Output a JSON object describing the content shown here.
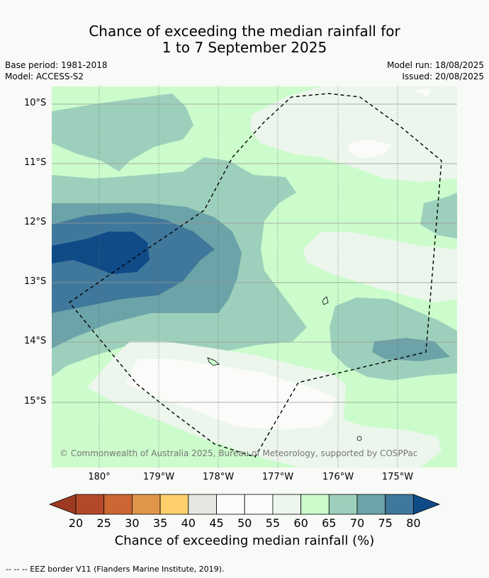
{
  "title_line1": "Chance of exceeding the median rainfall for",
  "title_line2": "1 to 7 September 2025",
  "base_period": "Base period: 1981-2018",
  "model": "Model: ACCESS-S2",
  "model_run": "Model run: 18/08/2025",
  "issued": "Issued: 20/08/2025",
  "lat_labels": [
    "10°S",
    "11°S",
    "12°S",
    "13°S",
    "14°S",
    "15°S"
  ],
  "lon_labels": [
    "180°",
    "179°W",
    "178°W",
    "177°W",
    "176°W",
    "175°W"
  ],
  "credit": "© Commonwealth of Australia 2025, Bureau of Meteorology, supported by COSPPac",
  "colorbar": {
    "ticks": [
      "20",
      "25",
      "30",
      "35",
      "40",
      "45",
      "50",
      "55",
      "60",
      "65",
      "70",
      "75",
      "80"
    ],
    "colors": [
      "#9f3a22",
      "#b4492a",
      "#cc6633",
      "#e0964a",
      "#fdcf6b",
      "#e8e6e2",
      "#fbfcfa",
      "#fbfcfa",
      "#ecf6ec",
      "#ccfccc",
      "#9dd0bc",
      "#6ba3a8",
      "#40789b",
      "#104b88"
    ],
    "label": "Chance of exceeding median rainfall (%)"
  },
  "footer": "--  --  -- EEZ border V11 (Flanders Marine Institute, 2019)."
}
